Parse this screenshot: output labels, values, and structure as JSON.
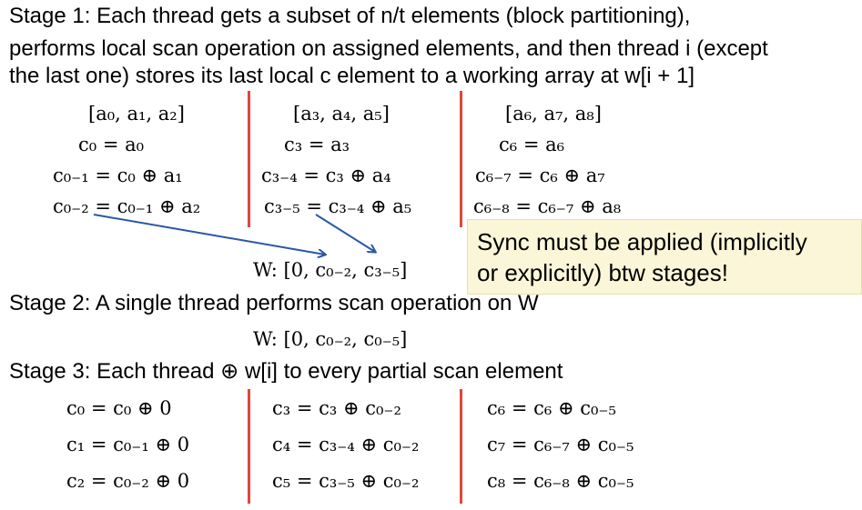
{
  "stage1": {
    "line1": "Stage 1: Each thread gets a subset of n/t elements (block partitioning),",
    "line2": "performs local scan operation on assigned elements, and then thread i (except",
    "line3": "the last one) stores its last local c element to a working array at w[i + 1]"
  },
  "stage1_columns": [
    [
      "[a₀, a₁, a₂]",
      "c₀ = a₀",
      "c₀₋₁ = c₀ ⊕ a₁",
      "c₀₋₂ = c₀₋₁ ⊕ a₂"
    ],
    [
      "[a₃, a₄, a₅]",
      "c₃ = a₃",
      "c₃₋₄ = c₃ ⊕ a₄",
      "c₃₋₅ = c₃₋₄ ⊕ a₅"
    ],
    [
      "[a₆, a₇, a₈]",
      "c₆ = a₆",
      "c₆₋₇ = c₆ ⊕ a₇",
      "c₆₋₈ = c₆₋₇ ⊕ a₈"
    ]
  ],
  "w_after_stage1": "W: [0, c₀₋₂, c₃₋₅]",
  "note": {
    "line1": "Sync must be applied (implicitly",
    "line2": "or explicitly) btw stages!"
  },
  "stage2": {
    "line": "Stage 2: A single thread performs scan operation on W",
    "w_result": "W: [0, c₀₋₂, c₀₋₅]"
  },
  "stage3": {
    "line": "Stage 3: Each thread ⊕ w[i] to every partial scan element"
  },
  "stage3_columns": [
    [
      "c₀ = c₀ ⊕ 0",
      "c₁ = c₀₋₁ ⊕ 0",
      "c₂ = c₀₋₂ ⊕ 0"
    ],
    [
      "c₃ = c₃ ⊕ c₀₋₂",
      "c₄ = c₃₋₄ ⊕ c₀₋₂",
      "c₅ = c₃₋₅ ⊕ c₀₋₂"
    ],
    [
      "c₆ = c₆ ⊕ c₀₋₅",
      "c₇ = c₆₋₇ ⊕ c₀₋₅",
      "c₈ = c₆₋₈ ⊕ c₀₋₅"
    ]
  ],
  "colors": {
    "separator": "#e0463a",
    "arrow": "#2b57a6",
    "note_bg": "#fbf6d7"
  }
}
